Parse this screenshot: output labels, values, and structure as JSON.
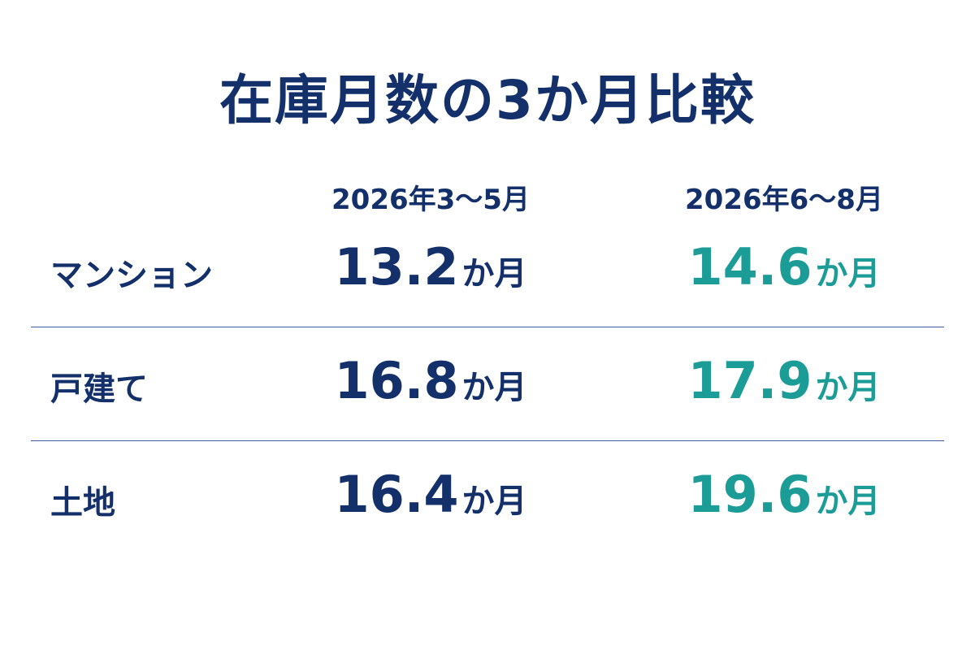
{
  "title": "在庫月数の3か月比較",
  "table": {
    "columns": [
      "2026年3〜5月",
      "2026年6〜8月"
    ],
    "rows": [
      {
        "label": "マンション",
        "cells": [
          {
            "value": 13.2,
            "unit": "か月"
          },
          {
            "value": 14.6,
            "unit": "か月"
          }
        ]
      },
      {
        "label": "戸建て",
        "cells": [
          {
            "value": 16.8,
            "unit": "か月"
          },
          {
            "value": 17.9,
            "unit": "か月"
          }
        ]
      },
      {
        "label": "土地",
        "cells": [
          {
            "value": 16.4,
            "unit": "か月"
          },
          {
            "value": 19.6,
            "unit": "か月"
          }
        ]
      }
    ]
  }
}
